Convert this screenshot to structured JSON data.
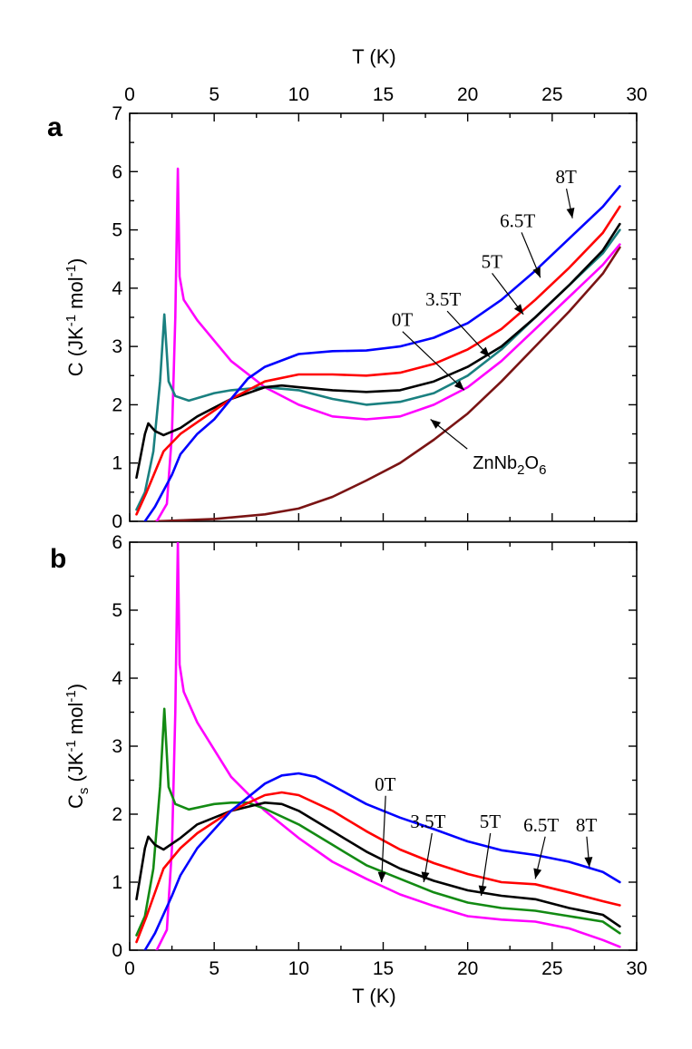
{
  "chart_data": [
    {
      "panel": "a",
      "type": "line",
      "xlabel_top": "T (K)",
      "ylabel": "C (JK-1 mol-1)",
      "xlim": [
        0,
        30
      ],
      "ylim": [
        0,
        7
      ],
      "x_ticks": [
        "0",
        "5",
        "10",
        "15",
        "20",
        "25",
        "30"
      ],
      "y_ticks": [
        "0",
        "1",
        "2",
        "3",
        "4",
        "5",
        "6",
        "7"
      ],
      "series": [
        {
          "name": "ZnNb2O6",
          "color": "#7a1414",
          "points": [
            [
              1.5,
              0
            ],
            [
              5,
              0.04
            ],
            [
              8,
              0.12
            ],
            [
              10,
              0.22
            ],
            [
              12,
              0.42
            ],
            [
              14,
              0.7
            ],
            [
              16,
              1.0
            ],
            [
              18,
              1.4
            ],
            [
              20,
              1.85
            ],
            [
              22,
              2.4
            ],
            [
              24,
              3.0
            ],
            [
              26,
              3.6
            ],
            [
              28,
              4.25
            ],
            [
              29,
              4.7
            ]
          ]
        },
        {
          "name": "0T",
          "color": "#ff00ff",
          "points": [
            [
              1.6,
              0
            ],
            [
              2.2,
              0.3
            ],
            [
              2.5,
              1.5
            ],
            [
              2.7,
              3.5
            ],
            [
              2.85,
              6.05
            ],
            [
              2.95,
              4.2
            ],
            [
              3.2,
              3.8
            ],
            [
              4,
              3.45
            ],
            [
              6,
              2.75
            ],
            [
              8,
              2.3
            ],
            [
              10,
              2.0
            ],
            [
              12,
              1.8
            ],
            [
              14,
              1.75
            ],
            [
              16,
              1.8
            ],
            [
              18,
              2.0
            ],
            [
              20,
              2.3
            ],
            [
              22,
              2.75
            ],
            [
              24,
              3.3
            ],
            [
              26,
              3.85
            ],
            [
              28,
              4.4
            ],
            [
              29,
              4.75
            ]
          ]
        },
        {
          "name": "3.5T",
          "color": "#1a8080",
          "points": [
            [
              0.4,
              0.2
            ],
            [
              0.9,
              0.5
            ],
            [
              1.4,
              1.2
            ],
            [
              1.8,
              2.4
            ],
            [
              2.05,
              3.55
            ],
            [
              2.3,
              2.4
            ],
            [
              2.7,
              2.15
            ],
            [
              3.5,
              2.07
            ],
            [
              5,
              2.2
            ],
            [
              6,
              2.25
            ],
            [
              8,
              2.3
            ],
            [
              10,
              2.25
            ],
            [
              12,
              2.1
            ],
            [
              14,
              2.0
            ],
            [
              16,
              2.05
            ],
            [
              18,
              2.2
            ],
            [
              20,
              2.5
            ],
            [
              22,
              2.95
            ],
            [
              24,
              3.5
            ],
            [
              26,
              4.05
            ],
            [
              28,
              4.6
            ],
            [
              29,
              5.0
            ]
          ]
        },
        {
          "name": "5T",
          "color": "#000000",
          "points": [
            [
              0.4,
              0.75
            ],
            [
              0.9,
              1.5
            ],
            [
              1.1,
              1.68
            ],
            [
              1.5,
              1.55
            ],
            [
              2.0,
              1.48
            ],
            [
              3,
              1.6
            ],
            [
              4,
              1.8
            ],
            [
              6,
              2.1
            ],
            [
              8,
              2.3
            ],
            [
              9,
              2.33
            ],
            [
              10,
              2.3
            ],
            [
              12,
              2.25
            ],
            [
              14,
              2.22
            ],
            [
              16,
              2.25
            ],
            [
              18,
              2.4
            ],
            [
              20,
              2.65
            ],
            [
              22,
              3.0
            ],
            [
              24,
              3.5
            ],
            [
              26,
              4.05
            ],
            [
              28,
              4.65
            ],
            [
              29,
              5.1
            ]
          ]
        },
        {
          "name": "6.5T",
          "color": "#ff0000",
          "points": [
            [
              0.4,
              0.12
            ],
            [
              1,
              0.5
            ],
            [
              2,
              1.2
            ],
            [
              3,
              1.5
            ],
            [
              4,
              1.7
            ],
            [
              6,
              2.1
            ],
            [
              8,
              2.4
            ],
            [
              10,
              2.52
            ],
            [
              12,
              2.52
            ],
            [
              14,
              2.5
            ],
            [
              16,
              2.55
            ],
            [
              18,
              2.7
            ],
            [
              20,
              2.95
            ],
            [
              22,
              3.3
            ],
            [
              24,
              3.8
            ],
            [
              26,
              4.35
            ],
            [
              28,
              4.95
            ],
            [
              29,
              5.4
            ]
          ]
        },
        {
          "name": "8T",
          "color": "#0000ff",
          "points": [
            [
              0.9,
              0
            ],
            [
              1.5,
              0.25
            ],
            [
              2.5,
              0.8
            ],
            [
              3,
              1.15
            ],
            [
              4,
              1.5
            ],
            [
              5,
              1.75
            ],
            [
              6,
              2.1
            ],
            [
              7,
              2.45
            ],
            [
              8,
              2.65
            ],
            [
              10,
              2.87
            ],
            [
              12,
              2.92
            ],
            [
              14,
              2.93
            ],
            [
              16,
              3.0
            ],
            [
              18,
              3.15
            ],
            [
              20,
              3.4
            ],
            [
              22,
              3.8
            ],
            [
              24,
              4.3
            ],
            [
              26,
              4.85
            ],
            [
              28,
              5.4
            ],
            [
              29,
              5.75
            ]
          ]
        }
      ],
      "annotations": [
        {
          "label": "8T",
          "text_x": 25.2,
          "text_y": 5.8,
          "arrow_to": [
            26.2,
            5.2
          ]
        },
        {
          "label": "6.5T",
          "text_x": 21.9,
          "text_y": 5.05,
          "arrow_to": [
            24.3,
            4.18
          ]
        },
        {
          "label": "5T",
          "text_x": 20.8,
          "text_y": 4.35,
          "arrow_to": [
            23.3,
            3.55
          ]
        },
        {
          "label": "3.5T",
          "text_x": 17.5,
          "text_y": 3.7,
          "arrow_to": [
            21.3,
            2.82
          ]
        },
        {
          "label": "0T",
          "text_x": 15.5,
          "text_y": 3.35,
          "arrow_to": [
            19.8,
            2.25
          ]
        },
        {
          "label": "ZnNb2O6",
          "text_x": 20.3,
          "text_y": 0.9,
          "arrow_to": [
            17.8,
            1.75
          ]
        }
      ]
    },
    {
      "panel": "b",
      "type": "line",
      "xlabel": "T (K)",
      "ylabel": "Cs (JK-1 mol-1)",
      "xlim": [
        0,
        30
      ],
      "ylim": [
        0,
        6
      ],
      "x_ticks": [
        "0",
        "5",
        "10",
        "15",
        "20",
        "25",
        "30"
      ],
      "y_ticks": [
        "0",
        "1",
        "2",
        "3",
        "4",
        "5",
        "6"
      ],
      "series": [
        {
          "name": "0T",
          "color": "#ff00ff",
          "points": [
            [
              1.6,
              0
            ],
            [
              2.2,
              0.3
            ],
            [
              2.5,
              1.5
            ],
            [
              2.7,
              3.5
            ],
            [
              2.85,
              6.0
            ],
            [
              2.95,
              4.2
            ],
            [
              3.2,
              3.8
            ],
            [
              4,
              3.35
            ],
            [
              6,
              2.55
            ],
            [
              8,
              2.05
            ],
            [
              10,
              1.65
            ],
            [
              12,
              1.3
            ],
            [
              14,
              1.05
            ],
            [
              16,
              0.82
            ],
            [
              18,
              0.65
            ],
            [
              20,
              0.5
            ],
            [
              22,
              0.45
            ],
            [
              24,
              0.42
            ],
            [
              26,
              0.32
            ],
            [
              28,
              0.15
            ],
            [
              29,
              0.05
            ]
          ]
        },
        {
          "name": "3.5T",
          "color": "#138a13",
          "points": [
            [
              0.4,
              0.22
            ],
            [
              0.9,
              0.5
            ],
            [
              1.4,
              1.2
            ],
            [
              1.8,
              2.4
            ],
            [
              2.05,
              3.55
            ],
            [
              2.3,
              2.4
            ],
            [
              2.7,
              2.15
            ],
            [
              3.5,
              2.07
            ],
            [
              5,
              2.15
            ],
            [
              6,
              2.17
            ],
            [
              7,
              2.17
            ],
            [
              8,
              2.08
            ],
            [
              10,
              1.85
            ],
            [
              12,
              1.55
            ],
            [
              14,
              1.25
            ],
            [
              16,
              1.05
            ],
            [
              18,
              0.85
            ],
            [
              20,
              0.7
            ],
            [
              22,
              0.62
            ],
            [
              24,
              0.58
            ],
            [
              26,
              0.5
            ],
            [
              28,
              0.42
            ],
            [
              29,
              0.25
            ]
          ]
        },
        {
          "name": "5T",
          "color": "#000000",
          "points": [
            [
              0.4,
              0.75
            ],
            [
              0.9,
              1.5
            ],
            [
              1.1,
              1.67
            ],
            [
              1.5,
              1.55
            ],
            [
              2.0,
              1.48
            ],
            [
              3,
              1.65
            ],
            [
              4,
              1.85
            ],
            [
              6,
              2.05
            ],
            [
              8,
              2.17
            ],
            [
              9,
              2.15
            ],
            [
              10,
              2.05
            ],
            [
              12,
              1.75
            ],
            [
              14,
              1.45
            ],
            [
              16,
              1.2
            ],
            [
              18,
              1.02
            ],
            [
              20,
              0.88
            ],
            [
              22,
              0.8
            ],
            [
              24,
              0.75
            ],
            [
              26,
              0.62
            ],
            [
              28,
              0.52
            ],
            [
              29,
              0.35
            ]
          ]
        },
        {
          "name": "6.5T",
          "color": "#ff0000",
          "points": [
            [
              0.4,
              0.12
            ],
            [
              1,
              0.5
            ],
            [
              2,
              1.2
            ],
            [
              3,
              1.5
            ],
            [
              4,
              1.72
            ],
            [
              6,
              2.05
            ],
            [
              8,
              2.28
            ],
            [
              9,
              2.32
            ],
            [
              10,
              2.28
            ],
            [
              12,
              2.05
            ],
            [
              14,
              1.75
            ],
            [
              16,
              1.48
            ],
            [
              18,
              1.28
            ],
            [
              20,
              1.12
            ],
            [
              22,
              1.0
            ],
            [
              24,
              0.97
            ],
            [
              26,
              0.85
            ],
            [
              28,
              0.72
            ],
            [
              29,
              0.66
            ]
          ]
        },
        {
          "name": "8T",
          "color": "#0000ff",
          "points": [
            [
              0.9,
              0
            ],
            [
              1.5,
              0.25
            ],
            [
              2.5,
              0.8
            ],
            [
              3,
              1.1
            ],
            [
              4,
              1.5
            ],
            [
              6,
              2.05
            ],
            [
              8,
              2.45
            ],
            [
              9,
              2.57
            ],
            [
              10,
              2.6
            ],
            [
              11,
              2.55
            ],
            [
              12,
              2.42
            ],
            [
              14,
              2.15
            ],
            [
              16,
              1.95
            ],
            [
              18,
              1.78
            ],
            [
              20,
              1.6
            ],
            [
              22,
              1.47
            ],
            [
              24,
              1.4
            ],
            [
              26,
              1.3
            ],
            [
              28,
              1.15
            ],
            [
              29,
              1.0
            ]
          ]
        }
      ],
      "annotations": [
        {
          "label": "0T",
          "text_x": 14.5,
          "text_y": 2.35,
          "arrow_to": [
            14.9,
            1.0
          ]
        },
        {
          "label": "3.5T",
          "text_x": 16.6,
          "text_y": 1.8,
          "arrow_to": [
            17.4,
            1.0
          ]
        },
        {
          "label": "5T",
          "text_x": 20.7,
          "text_y": 1.8,
          "arrow_to": [
            20.8,
            0.8
          ]
        },
        {
          "label": "6.5T",
          "text_x": 23.3,
          "text_y": 1.75,
          "arrow_to": [
            24.0,
            1.05
          ]
        },
        {
          "label": "8T",
          "text_x": 26.4,
          "text_y": 1.75,
          "arrow_to": [
            27.2,
            1.22
          ]
        }
      ]
    }
  ]
}
